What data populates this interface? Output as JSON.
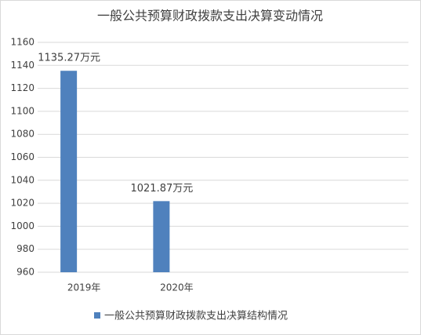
{
  "chart_data": {
    "type": "bar",
    "title": "一般公共预算财政拨款支出决算变动情况",
    "categories": [
      "2019年",
      "2020年",
      null,
      null
    ],
    "series": [
      {
        "name": "一般公共预算财政拨款支出决算结构情况",
        "color": "#4f81bd",
        "values": [
          1135.27,
          1021.87,
          null,
          null
        ],
        "value_labels": [
          "1135.27万元",
          "1021.87万元",
          null,
          null
        ]
      }
    ],
    "ylim": [
      960,
      1160
    ],
    "yticks": [
      960,
      980,
      1000,
      1020,
      1040,
      1060,
      1080,
      1100,
      1120,
      1140,
      1160
    ],
    "grid": true,
    "legend": "bottom"
  }
}
